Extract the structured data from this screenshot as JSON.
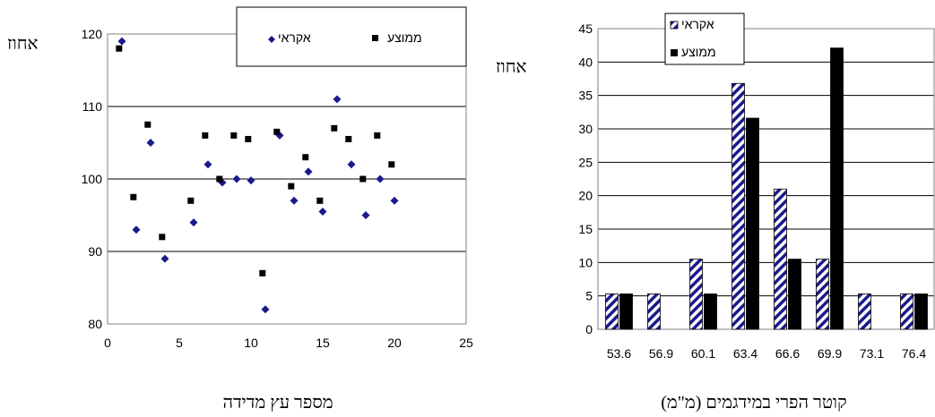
{
  "chart_data": [
    {
      "type": "scatter",
      "xlabel": "מספר עץ מדידה",
      "ylabel": "אחוז",
      "xlim": [
        0,
        25
      ],
      "ylim": [
        80,
        120
      ],
      "xticks": [
        0,
        5,
        10,
        15,
        20,
        25
      ],
      "yticks": [
        80,
        90,
        100,
        110,
        120
      ],
      "grid": "horizontal",
      "legend": "top",
      "series": [
        {
          "name": "אקראי",
          "color": "#1a1a8c",
          "marker": "diamond",
          "x": [
            1,
            2,
            3,
            4,
            6,
            7,
            8,
            9,
            10,
            11,
            12,
            13,
            14,
            15,
            16,
            17,
            18,
            19,
            20
          ],
          "y": [
            119,
            93,
            105,
            89,
            94,
            102,
            99.5,
            100,
            99.8,
            82,
            106,
            97,
            101,
            95.5,
            111,
            102,
            95,
            100,
            97
          ]
        },
        {
          "name": "ממוצע",
          "color": "#000000",
          "marker": "square",
          "x": [
            0.8,
            1.8,
            2.8,
            3.8,
            5.8,
            6.8,
            7.8,
            8.8,
            9.8,
            10.8,
            11.8,
            12.8,
            13.8,
            14.8,
            15.8,
            16.8,
            17.8,
            18.8,
            19.8
          ],
          "y": [
            118,
            97.5,
            107.5,
            92,
            97,
            106,
            100,
            106,
            105.5,
            87,
            106.5,
            99,
            103,
            97,
            107,
            105.5,
            100,
            106,
            102
          ]
        }
      ]
    },
    {
      "type": "bar",
      "xlabel": "קוטר הפרי במידגמים (מ\"מ)",
      "ylabel": "אחוז",
      "ylim": [
        0,
        45
      ],
      "yticks": [
        0,
        5,
        10,
        15,
        20,
        25,
        30,
        35,
        40,
        45
      ],
      "grid": "horizontal",
      "legend": "top",
      "categories": [
        "53.6",
        "56.9",
        "60.1",
        "63.4",
        "66.6",
        "69.9",
        "73.1",
        "76.4"
      ],
      "series": [
        {
          "name": "אקראי",
          "color": "#1a1a8c",
          "pattern": "diagonal-hatch",
          "values": [
            5.3,
            5.3,
            10.5,
            36.8,
            21,
            10.5,
            5.3,
            5.3
          ]
        },
        {
          "name": "ממוצע",
          "color": "#000000",
          "values": [
            5.3,
            0,
            5.3,
            31.6,
            10.5,
            42.1,
            0,
            5.3
          ]
        }
      ]
    }
  ]
}
